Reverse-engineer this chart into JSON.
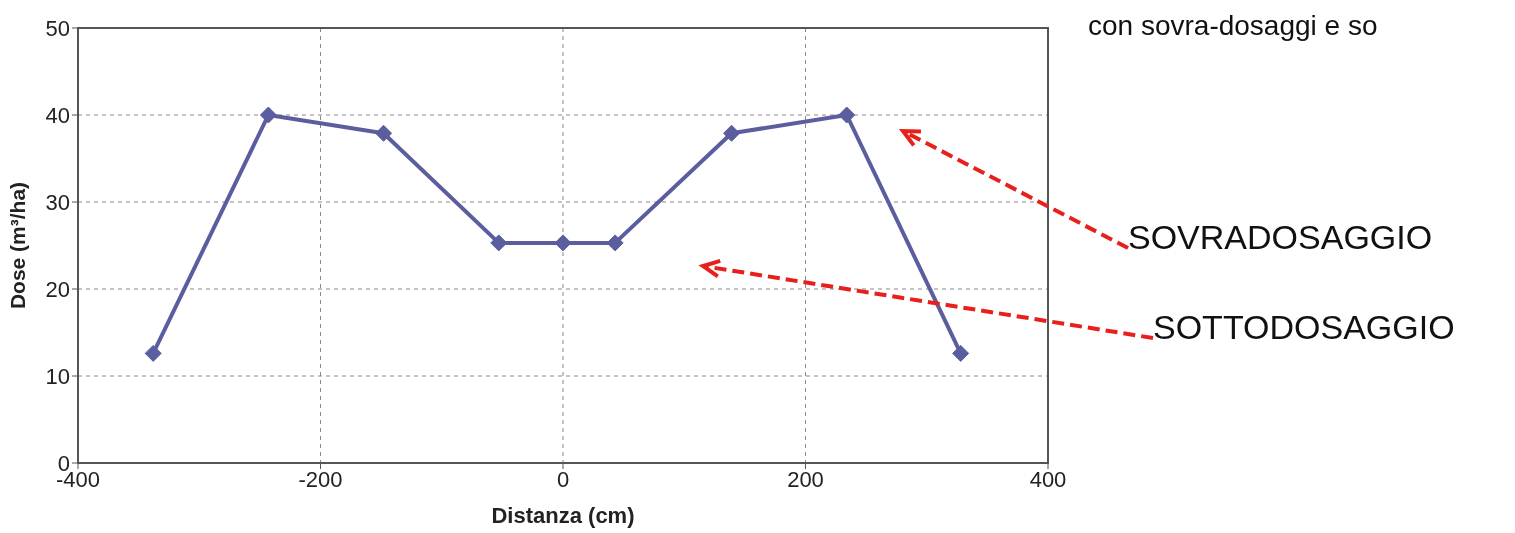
{
  "chart_data": {
    "type": "line",
    "xlabel": "Distanza  (cm)",
    "ylabel": "Dose (m³/ha)",
    "x": [
      -338,
      -243,
      -148,
      -53,
      0,
      43,
      139,
      234,
      328
    ],
    "series": [
      {
        "color": "#5b5e9e",
        "values": [
          12.6,
          40,
          37.9,
          25.3,
          25.3,
          25.3,
          37.9,
          40,
          12.6
        ]
      }
    ],
    "xlim": [
      -400,
      400
    ],
    "xticks": [
      -400,
      -200,
      0,
      200,
      400
    ],
    "ylim": [
      0,
      50
    ],
    "yticks": [
      0,
      10,
      20,
      30,
      40,
      50
    ],
    "grid": true,
    "marker": "diamond",
    "line_style": "solid",
    "annotations": [
      "con sovra-dosaggi e so",
      "SOVRADOSAGGIO",
      "SOTTODOSAGGIO"
    ]
  }
}
